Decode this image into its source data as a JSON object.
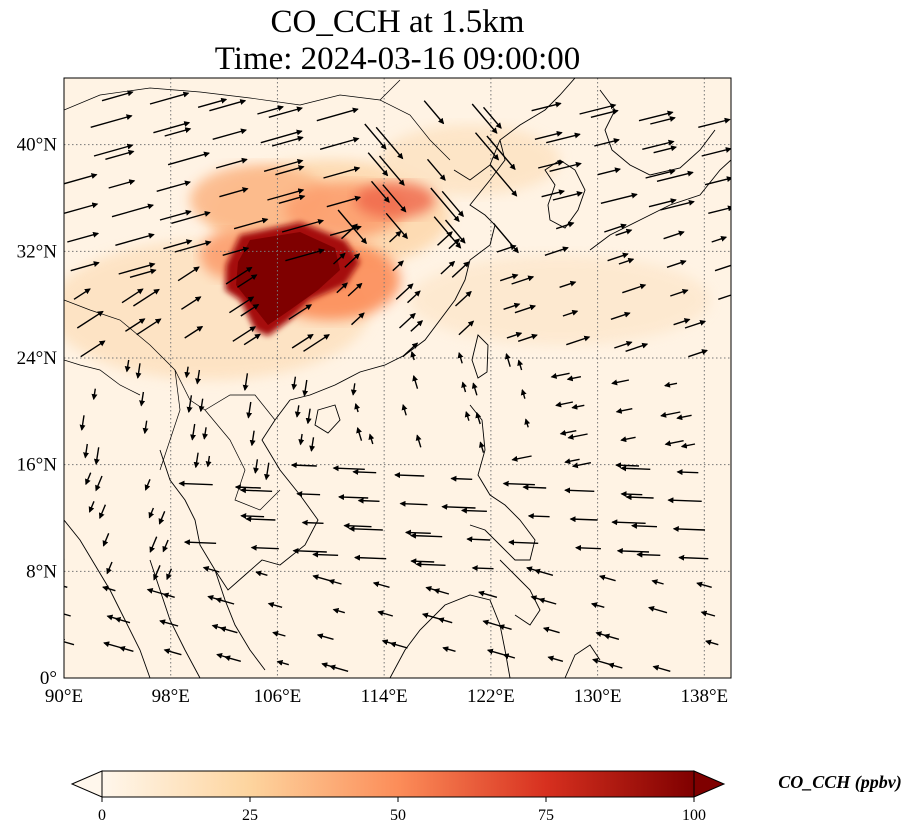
{
  "figure": {
    "title_line1": "CO_CCH at 1.5km",
    "title_line2": "Time: 2024-03-16 09:00:00"
  },
  "map": {
    "projection": "PlateCarree",
    "lon_range": [
      90,
      140
    ],
    "lat_range": [
      0,
      45
    ],
    "gridlines": "dotted",
    "x_tick_labels": [
      "90°E",
      "98°E",
      "106°E",
      "114°E",
      "122°E",
      "130°E",
      "138°E"
    ],
    "x_tick_values": [
      90,
      98,
      106,
      114,
      122,
      130,
      138
    ],
    "y_tick_labels": [
      "0°",
      "8°N",
      "16°N",
      "24°N",
      "32°N",
      "40°N"
    ],
    "y_tick_values": [
      0,
      8,
      16,
      24,
      32,
      40
    ],
    "field": "CO_CCH",
    "high_concentration_region": "Sichuan Basin / central China, ~100–112°E, 25–35°N",
    "vector_field": "wind arrows at 1.5km"
  },
  "colorbar": {
    "colormap": "OrRd",
    "colors": [
      "#fff7ec",
      "#fdd49e",
      "#fc8d59",
      "#d7301f",
      "#7f0000"
    ],
    "extend": "both",
    "tick_labels": [
      "0",
      "25",
      "50",
      "75",
      "100"
    ],
    "tick_values": [
      0,
      25,
      50,
      75,
      100
    ],
    "label": "CO_CCH (ppbv)"
  }
}
